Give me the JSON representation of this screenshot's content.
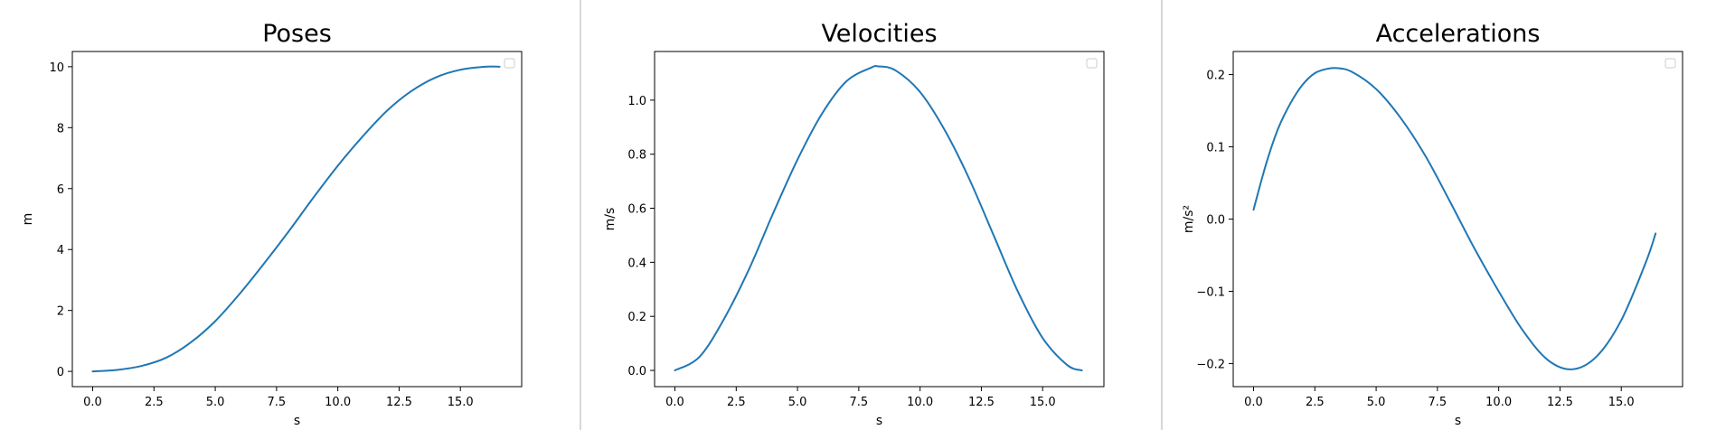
{
  "line_color": "#1f77b4",
  "chart_data": [
    {
      "type": "line",
      "title": "Poses",
      "xlabel": "s",
      "ylabel": "m",
      "xlim": [
        -0.83,
        17.5
      ],
      "ylim": [
        -0.5,
        10.5
      ],
      "xticks": [
        0.0,
        2.5,
        5.0,
        7.5,
        10.0,
        12.5,
        15.0
      ],
      "xtick_labels": [
        "0.0",
        "2.5",
        "5.0",
        "7.5",
        "10.0",
        "12.5",
        "15.0"
      ],
      "yticks": [
        0,
        2,
        4,
        6,
        8,
        10
      ],
      "ytick_labels": [
        "0",
        "2",
        "4",
        "6",
        "8",
        "10"
      ],
      "legend": "top-right, empty",
      "grid": false,
      "series": [
        {
          "x": [
            0,
            1,
            2,
            3,
            4,
            5,
            6,
            7,
            8,
            9,
            10,
            11,
            12,
            13,
            14,
            15,
            16,
            16.6
          ],
          "y": [
            0.0,
            0.05,
            0.18,
            0.45,
            0.95,
            1.65,
            2.55,
            3.55,
            4.6,
            5.7,
            6.75,
            7.7,
            8.55,
            9.2,
            9.65,
            9.9,
            10.0,
            10.0
          ]
        }
      ]
    },
    {
      "type": "line",
      "title": "Velocities",
      "xlabel": "s",
      "ylabel": "m/s",
      "xlim": [
        -0.83,
        17.5
      ],
      "ylim": [
        -0.06,
        1.18
      ],
      "xticks": [
        0.0,
        2.5,
        5.0,
        7.5,
        10.0,
        12.5,
        15.0
      ],
      "xtick_labels": [
        "0.0",
        "2.5",
        "5.0",
        "7.5",
        "10.0",
        "12.5",
        "15.0"
      ],
      "yticks": [
        0.0,
        0.2,
        0.4,
        0.6,
        0.8,
        1.0
      ],
      "ytick_labels": [
        "0.0",
        "0.2",
        "0.4",
        "0.6",
        "0.8",
        "1.0"
      ],
      "legend": "top-right, empty",
      "grid": false,
      "series": [
        {
          "x": [
            0,
            1,
            2,
            3,
            4,
            5,
            6,
            7,
            8,
            8.3,
            9,
            10,
            11,
            12,
            13,
            14,
            15,
            16,
            16.6
          ],
          "y": [
            0.0,
            0.05,
            0.19,
            0.37,
            0.58,
            0.78,
            0.95,
            1.07,
            1.12,
            1.125,
            1.11,
            1.03,
            0.89,
            0.71,
            0.5,
            0.29,
            0.12,
            0.02,
            0.0
          ]
        }
      ]
    },
    {
      "type": "line",
      "title": "Accelerations",
      "xlabel": "s",
      "ylabel": "m/s²",
      "xlim": [
        -0.83,
        17.5
      ],
      "ylim": [
        -0.232,
        0.232
      ],
      "xticks": [
        0.0,
        2.5,
        5.0,
        7.5,
        10.0,
        12.5,
        15.0
      ],
      "xtick_labels": [
        "0.0",
        "2.5",
        "5.0",
        "7.5",
        "10.0",
        "12.5",
        "15.0"
      ],
      "yticks": [
        -0.2,
        -0.1,
        0.0,
        0.1,
        0.2
      ],
      "ytick_labels": [
        "−0.2",
        "−0.1",
        "0.0",
        "0.1",
        "0.2"
      ],
      "legend": "top-right, empty",
      "grid": false,
      "series": [
        {
          "x": [
            0,
            0.5,
            1,
            1.5,
            2,
            2.5,
            3,
            3.4,
            4,
            5,
            6,
            7,
            8,
            9,
            10,
            11,
            12,
            13,
            14,
            15,
            16,
            16.4
          ],
          "y": [
            0.013,
            0.075,
            0.125,
            0.16,
            0.186,
            0.202,
            0.208,
            0.209,
            0.204,
            0.18,
            0.14,
            0.088,
            0.025,
            -0.04,
            -0.1,
            -0.155,
            -0.195,
            -0.208,
            -0.19,
            -0.14,
            -0.06,
            -0.02
          ]
        }
      ]
    }
  ]
}
